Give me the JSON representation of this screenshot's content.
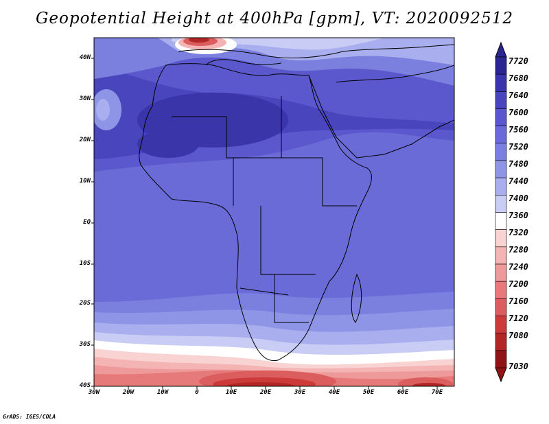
{
  "title": "Geopotential Height at 400hPa [gpm], VT: 2020092512",
  "credit": "GrADS: IGES/COLA",
  "lat_labels": [
    "40N",
    "30N",
    "20N",
    "10N",
    "EQ",
    "10S",
    "20S",
    "30S",
    "40S"
  ],
  "lon_labels": [
    "30W",
    "20W",
    "10W",
    "0",
    "10E",
    "20E",
    "30E",
    "40E",
    "50E",
    "60E",
    "70E"
  ],
  "colorbar": {
    "labels": [
      "7720",
      "7680",
      "7640",
      "7600",
      "7560",
      "7520",
      "7480",
      "7440",
      "7400",
      "7360",
      "7320",
      "7280",
      "7240",
      "7200",
      "7160",
      "7120",
      "7080",
      "7030"
    ],
    "colors": [
      "#2b2590",
      "#3a35a8",
      "#4845bd",
      "#5a58cc",
      "#6a6bd6",
      "#7b7fde",
      "#8e94e6",
      "#a8aeee",
      "#c9cdf5",
      "#ffffff",
      "#f9d2d2",
      "#f4b4b4",
      "#ee9a9a",
      "#e67a7a",
      "#dc5d5d",
      "#cc3a3a",
      "#b32626",
      "#8f1515"
    ]
  }
}
